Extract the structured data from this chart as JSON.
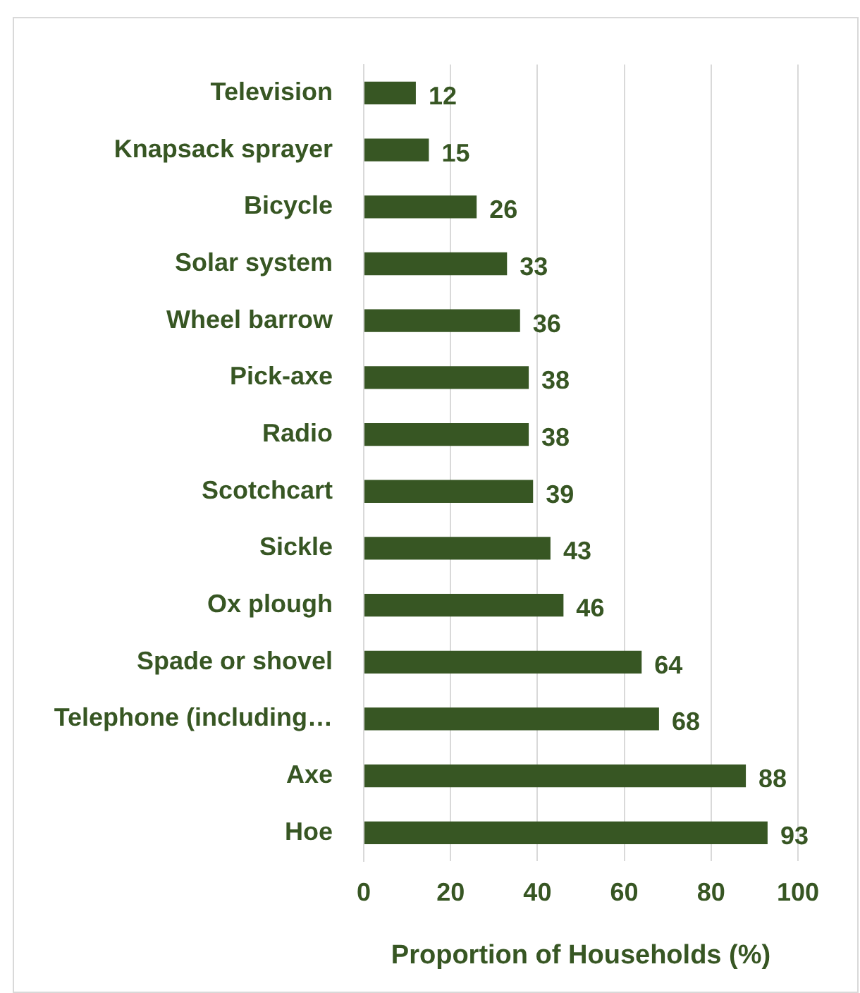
{
  "chart_data": {
    "type": "bar",
    "orientation": "horizontal",
    "xlabel": "Proportion of Households (%)",
    "categories": [
      "Television",
      "Knapsack sprayer",
      "Bicycle",
      "Solar system",
      "Wheel barrow",
      "Pick-axe",
      "Radio",
      "Scotchcart",
      "Sickle",
      "Ox plough",
      "Spade or shovel",
      "Telephone (including…",
      "Axe",
      "Hoe"
    ],
    "values": [
      12,
      15,
      26,
      33,
      36,
      38,
      38,
      39,
      43,
      46,
      64,
      68,
      88,
      93
    ],
    "color": "#375623",
    "xlim": [
      0,
      100
    ],
    "xticks": [
      0,
      20,
      40,
      60,
      80,
      100
    ],
    "grid": "x",
    "data_labels": true,
    "legend": false
  }
}
